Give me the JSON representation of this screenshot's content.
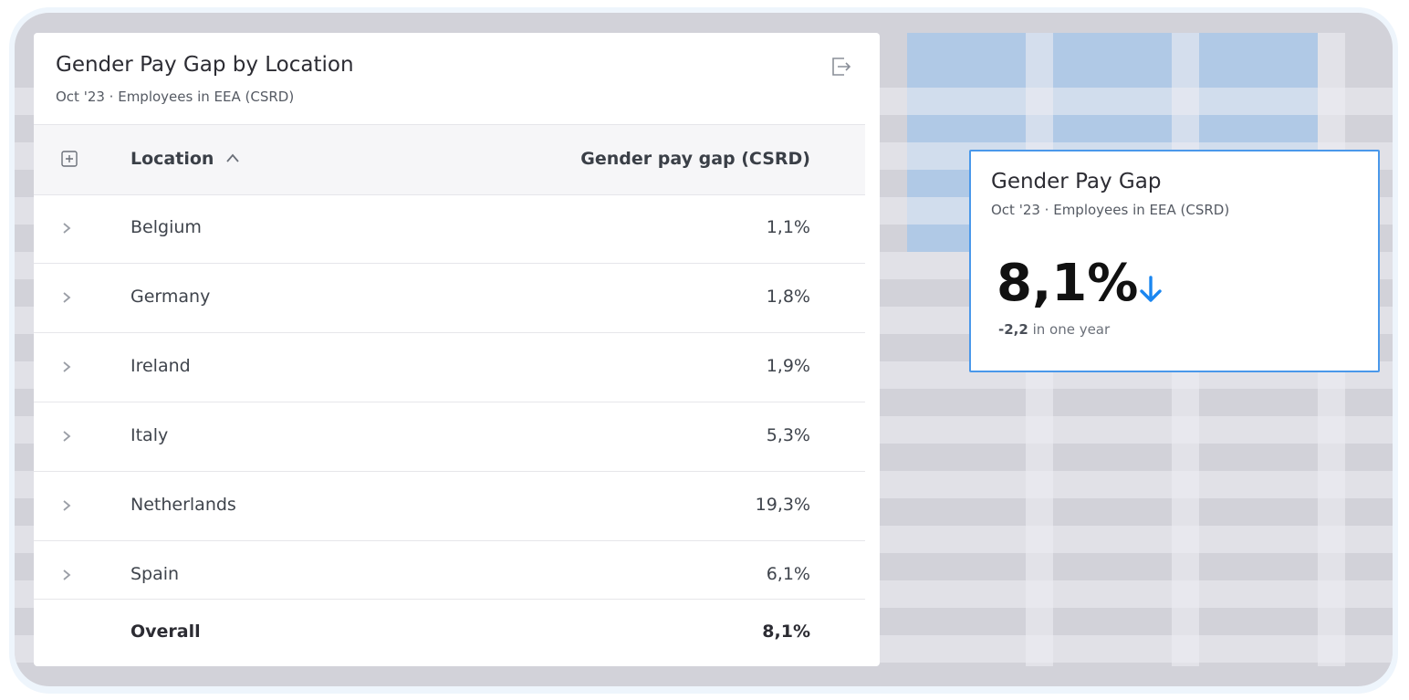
{
  "table_widget": {
    "title": "Gender Pay Gap by Location",
    "subtitle": "Oct '23 · Employees in EEA (CSRD)",
    "export_icon": "export-icon",
    "columns": {
      "location": "Location",
      "gap": "Gender pay gap (CSRD)"
    },
    "sort": "ascending",
    "rows": [
      {
        "location": "Belgium",
        "gap": "1,1%"
      },
      {
        "location": "Germany",
        "gap": "1,8%"
      },
      {
        "location": "Ireland",
        "gap": "1,9%"
      },
      {
        "location": "Italy",
        "gap": "5,3%"
      },
      {
        "location": "Netherlands",
        "gap": "19,3%"
      },
      {
        "location": "Spain",
        "gap": "6,1%"
      }
    ],
    "overall": {
      "label": "Overall",
      "gap": "8,1%"
    }
  },
  "kpi_card": {
    "title": "Gender Pay Gap",
    "subtitle": "Oct '23 · Employees in EEA (CSRD)",
    "value": "8,1%",
    "trend_icon": "arrow-down-icon",
    "delta": "-2,2",
    "delta_suffix": " in one year"
  },
  "colors": {
    "accent": "#1a86f0",
    "card_border": "#4a98ea"
  }
}
